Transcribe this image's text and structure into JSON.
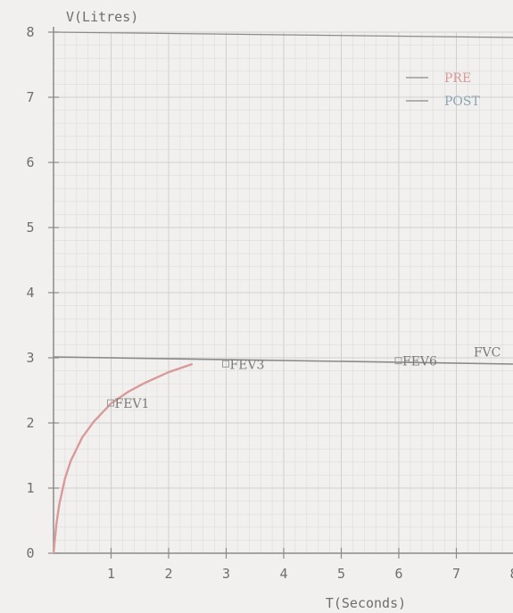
{
  "chart_data": {
    "type": "line",
    "title": "",
    "ylabel": "V(Litres)",
    "xlabel": "T(Seconds)",
    "xlim": [
      0,
      8
    ],
    "ylim": [
      0,
      8
    ],
    "x_ticks": [
      "1",
      "2",
      "3",
      "4",
      "5",
      "6",
      "7",
      "8"
    ],
    "y_ticks": [
      "0",
      "1",
      "2",
      "3",
      "4",
      "5",
      "6",
      "7",
      "8"
    ],
    "grid": true,
    "legend_position": "top-right",
    "series": [
      {
        "name": "PRE",
        "color": "#d89a9a",
        "x": [
          0,
          0.05,
          0.1,
          0.2,
          0.3,
          0.5,
          0.7,
          1.0,
          1.3,
          1.6,
          2.0,
          2.4
        ],
        "y": [
          0,
          0.45,
          0.75,
          1.15,
          1.42,
          1.78,
          2.02,
          2.3,
          2.48,
          2.62,
          2.78,
          2.9
        ]
      },
      {
        "name": "POST",
        "color": "#8aa6b4",
        "x": [],
        "y": []
      }
    ],
    "reference_line": {
      "y": 3,
      "color": "#8a8a8a"
    },
    "annotations": [
      {
        "text": "FEV1",
        "x": 1.0,
        "y": 2.3
      },
      {
        "text": "FEV3",
        "x": 3.0,
        "y": 2.9
      },
      {
        "text": "FEV6",
        "x": 6.0,
        "y": 2.95
      },
      {
        "text": "FVC",
        "x": 7.3,
        "y": 3.05
      }
    ],
    "colors": {
      "background": "#f2f0ee",
      "minor_grid": "#dcdcdc",
      "major_grid": "#cfcfcf",
      "axis": "#8a8a8a",
      "text": "#6e6e6e"
    }
  }
}
